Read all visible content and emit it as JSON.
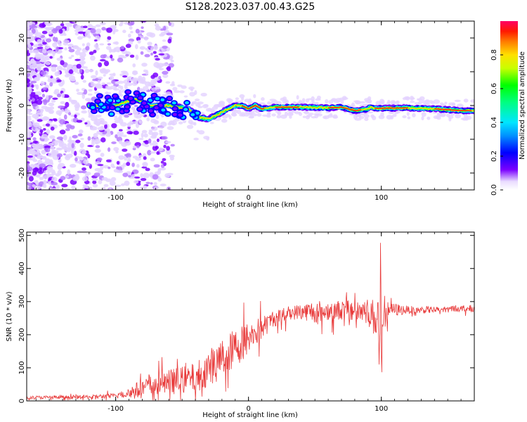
{
  "title": "S128.2023.037.00.43.G25",
  "chart_data": [
    {
      "type": "heatmap",
      "xlabel": "Height of straight line (km)",
      "ylabel": "Frequency (Hz)",
      "xlim": [
        -167,
        170
      ],
      "ylim": [
        -25,
        25
      ],
      "xticks": [
        -100,
        0,
        100
      ],
      "yticks": [
        -20,
        -10,
        0,
        10,
        20
      ],
      "ridge": {
        "x": [
          -120,
          -100,
          -85,
          -75,
          -60,
          -45,
          -38,
          -30,
          -20,
          -10,
          -5,
          0,
          5,
          10,
          20,
          40,
          60,
          70,
          80,
          88,
          92,
          95,
          100,
          120,
          140,
          160,
          170
        ],
        "y": [
          0,
          0,
          2,
          0,
          0,
          -1,
          -3.5,
          -4,
          -2,
          0,
          0,
          -1,
          0,
          -1,
          -0.5,
          -0.5,
          -0.7,
          -0.5,
          -1.5,
          -1.2,
          -0.5,
          -0.8,
          -0.8,
          -0.7,
          -1.0,
          -1.5,
          -1.6
        ]
      },
      "colorbar": {
        "label": "Normalized spectral amplitude",
        "ticks": [
          "0.0",
          "0.2",
          "0.4",
          "0.6",
          "0.8"
        ],
        "range": [
          0,
          1
        ]
      }
    },
    {
      "type": "line",
      "xlabel": "Height of straight line (km)",
      "ylabel": "SNR (10 * v/v)",
      "xlim": [
        -167,
        170
      ],
      "ylim": [
        0,
        510
      ],
      "xticks": [
        -100,
        0,
        100
      ],
      "yticks": [
        0,
        100,
        200,
        300,
        400,
        500
      ],
      "color": "#e83a3a",
      "trend": {
        "x": [
          -167,
          -120,
          -100,
          -85,
          -70,
          -55,
          -40,
          -30,
          -20,
          -10,
          0,
          10,
          20,
          30,
          40,
          50,
          60,
          70,
          80,
          90,
          95,
          100,
          105,
          120,
          140,
          160,
          170
        ],
        "y": [
          10,
          12,
          15,
          30,
          50,
          60,
          70,
          100,
          130,
          160,
          190,
          220,
          250,
          265,
          270,
          270,
          272,
          275,
          275,
          270,
          250,
          260,
          275,
          275,
          275,
          280,
          280
        ]
      },
      "noise": {
        "x": [
          -167,
          -120,
          -100,
          -85,
          -70,
          -55,
          -40,
          -30,
          -20,
          -10,
          0,
          10,
          20,
          30,
          40,
          50,
          60,
          70,
          80,
          90,
          95,
          100,
          105,
          120,
          140,
          160,
          170
        ],
        "y": [
          5,
          6,
          8,
          25,
          35,
          40,
          45,
          55,
          60,
          60,
          50,
          35,
          25,
          20,
          25,
          35,
          30,
          30,
          40,
          40,
          60,
          80,
          25,
          12,
          10,
          10,
          10
        ]
      }
    }
  ]
}
